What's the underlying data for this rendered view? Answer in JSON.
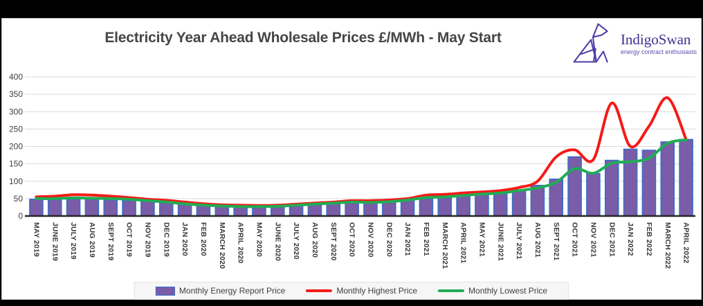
{
  "title": "Electricity Year Ahead Wholesale Prices £/MWh - May Start",
  "logo": {
    "name": "IndigoSwan",
    "tagline": "energy contract enthusiasts",
    "color": "#4b3ea8"
  },
  "chart_data": {
    "type": "bar",
    "title": "Electricity Year Ahead Wholesale Prices £/MWh - May Start",
    "xlabel": "",
    "ylabel": "",
    "ylim": [
      0,
      400
    ],
    "ytick_step": 50,
    "grid": true,
    "legend_position": "bottom",
    "categories": [
      "MAY 2019",
      "JUNE 2019",
      "JULY 2019",
      "AUG 2019",
      "SEPT 2019",
      "OCT 2019",
      "NOV 2019",
      "DEC 2019",
      "JAN 2020",
      "FEB 2020",
      "MARCH 2020",
      "APRIL 2020",
      "MAY 2020",
      "JUNE 2020",
      "JULY 2020",
      "AUG 2020",
      "SEPT 2020",
      "OCT 2020",
      "NOV 2020",
      "DEC 2020",
      "JAN 2021",
      "FEB 2021",
      "MARCH 2021",
      "APRIL 2021",
      "MAY 2021",
      "JUNE 2021",
      "JULY 2021",
      "AUG 2021",
      "SEPT 2021",
      "OCT 2021",
      "NOV 2021",
      "DEC 2021",
      "JAN 2022",
      "FEB 2022",
      "MARCH 2022",
      "APRIL 2022"
    ],
    "series": [
      {
        "name": "Monthly Energy Report Price",
        "type": "bar",
        "color": "#7a5ca8",
        "border_color": "#3a6ec6",
        "values": [
          48,
          47,
          48,
          47,
          46,
          44,
          42,
          38,
          33,
          30,
          28,
          27,
          26,
          28,
          31,
          34,
          36,
          39,
          38,
          41,
          45,
          49,
          53,
          58,
          61,
          64,
          75,
          88,
          106,
          170,
          122,
          160,
          192,
          189,
          213,
          220
        ]
      },
      {
        "name": "Monthly Highest Price",
        "type": "line",
        "color": "#f51a16",
        "values": [
          55,
          57,
          61,
          60,
          57,
          53,
          48,
          45,
          40,
          35,
          32,
          31,
          30,
          31,
          34,
          37,
          40,
          44,
          44,
          46,
          50,
          60,
          62,
          66,
          69,
          73,
          82,
          100,
          170,
          190,
          162,
          325,
          200,
          258,
          340,
          220
        ]
      },
      {
        "name": "Monthly Lowest Price",
        "type": "line",
        "color": "#21ac55",
        "values": [
          50,
          50,
          52,
          51,
          50,
          48,
          44,
          40,
          35,
          31,
          29,
          27,
          27,
          28,
          31,
          34,
          37,
          40,
          39,
          41,
          46,
          53,
          55,
          59,
          63,
          66,
          73,
          81,
          97,
          136,
          123,
          152,
          156,
          166,
          209,
          219
        ]
      }
    ],
    "axis_color": "#262626",
    "gridline_color": "#d9d9d9",
    "tick_label_color": "#3f3f3f"
  }
}
